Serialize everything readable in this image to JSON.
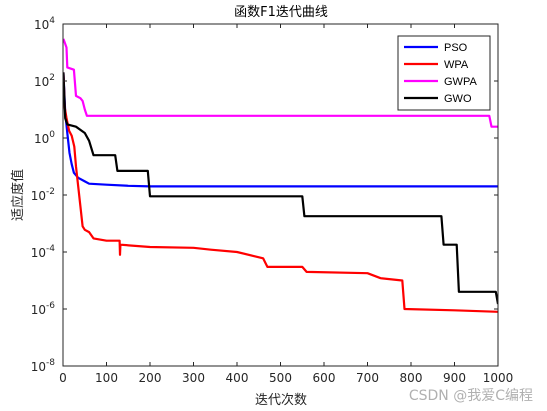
{
  "chart_data": {
    "type": "line",
    "title": "函数F1迭代曲线",
    "xlabel": "迭代次数",
    "ylabel": "适应度值",
    "xlim": [
      0,
      1000
    ],
    "ylim": [
      1e-08,
      10000.0
    ],
    "yscale": "log",
    "x_ticks": [
      0,
      100,
      200,
      300,
      400,
      500,
      600,
      700,
      800,
      900,
      1000
    ],
    "y_tick_exponents": [
      -8,
      -6,
      -4,
      -2,
      0,
      2,
      4
    ],
    "y_tick_base": "10",
    "legend_position": "top-right",
    "series": [
      {
        "name": "PSO",
        "color": "#0000ff",
        "points": [
          [
            1,
            200
          ],
          [
            5,
            8
          ],
          [
            10,
            1.5
          ],
          [
            15,
            0.3
          ],
          [
            20,
            0.12
          ],
          [
            25,
            0.06
          ],
          [
            35,
            0.04
          ],
          [
            50,
            0.03
          ],
          [
            60,
            0.025
          ],
          [
            80,
            0.024
          ],
          [
            100,
            0.023
          ],
          [
            150,
            0.021
          ],
          [
            200,
            0.02
          ],
          [
            300,
            0.02
          ],
          [
            500,
            0.02
          ],
          [
            700,
            0.02
          ],
          [
            900,
            0.02
          ],
          [
            1000,
            0.02
          ]
        ]
      },
      {
        "name": "WPA",
        "color": "#ff0000",
        "points": [
          [
            1,
            200
          ],
          [
            4,
            12
          ],
          [
            8,
            5
          ],
          [
            14,
            1.8
          ],
          [
            20,
            1.2
          ],
          [
            26,
            0.5
          ],
          [
            30,
            0.1
          ],
          [
            35,
            0.02
          ],
          [
            40,
            0.004
          ],
          [
            45,
            0.0008
          ],
          [
            50,
            0.0006
          ],
          [
            60,
            0.0005
          ],
          [
            70,
            0.0003
          ],
          [
            100,
            0.00025
          ],
          [
            130,
            0.00025
          ],
          [
            131,
            8e-05
          ],
          [
            132,
            0.00018
          ],
          [
            200,
            0.00015
          ],
          [
            300,
            0.00014
          ],
          [
            340,
            0.00012
          ],
          [
            400,
            0.0001
          ],
          [
            460,
            6e-05
          ],
          [
            470,
            3e-05
          ],
          [
            550,
            3e-05
          ],
          [
            560,
            2e-05
          ],
          [
            700,
            1.8e-05
          ],
          [
            730,
            1.2e-05
          ],
          [
            780,
            1e-05
          ],
          [
            785,
            1e-06
          ],
          [
            900,
            9e-07
          ],
          [
            1000,
            8e-07
          ]
        ]
      },
      {
        "name": "GWPA",
        "color": "#ff00ff",
        "points": [
          [
            1,
            3000
          ],
          [
            8,
            1500
          ],
          [
            10,
            300
          ],
          [
            25,
            250
          ],
          [
            30,
            30
          ],
          [
            40,
            25
          ],
          [
            45,
            20
          ],
          [
            50,
            10
          ],
          [
            55,
            6
          ],
          [
            70,
            6
          ],
          [
            500,
            6
          ],
          [
            980,
            6
          ],
          [
            985,
            2.5
          ],
          [
            1000,
            2.5
          ]
        ]
      },
      {
        "name": "GWO",
        "color": "#000000",
        "points": [
          [
            1,
            200
          ],
          [
            5,
            5
          ],
          [
            10,
            3
          ],
          [
            30,
            2.5
          ],
          [
            50,
            1.5
          ],
          [
            60,
            0.8
          ],
          [
            70,
            0.25
          ],
          [
            120,
            0.25
          ],
          [
            125,
            0.07
          ],
          [
            195,
            0.07
          ],
          [
            200,
            0.009
          ],
          [
            550,
            0.009
          ],
          [
            555,
            0.0018
          ],
          [
            870,
            0.0018
          ],
          [
            875,
            0.00018
          ],
          [
            905,
            0.00018
          ],
          [
            910,
            4e-06
          ],
          [
            995,
            4e-06
          ],
          [
            1000,
            1.5e-06
          ]
        ]
      }
    ]
  },
  "watermark": "CSDN @我爱C编程"
}
